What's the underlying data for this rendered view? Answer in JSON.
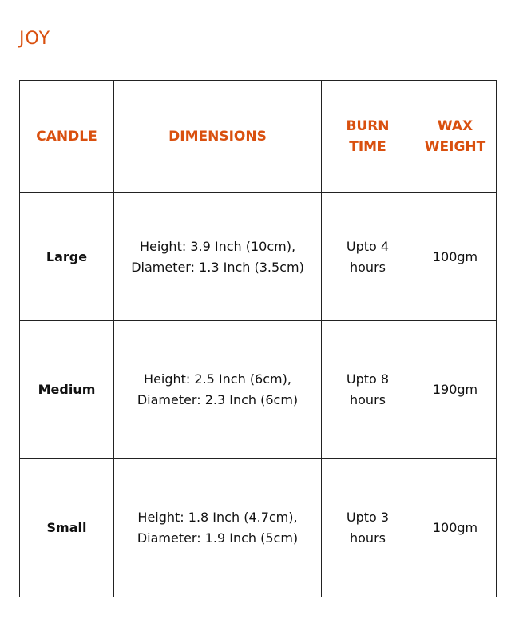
{
  "title": "JOY",
  "colors": {
    "accent": "#d9500f"
  },
  "headers": [
    "CANDLE",
    "DIMENSIONS",
    "BURN TIME",
    "WAX WEIGHT"
  ],
  "rows": [
    {
      "candle": "Large",
      "dim1": "Height: 3.9 Inch (10cm),",
      "dim2": "Diameter: 1.3 Inch (3.5cm)",
      "burn": "Upto 4 hours",
      "wax": "100gm"
    },
    {
      "candle": "Medium",
      "dim1": "Height: 2.5 Inch (6cm),",
      "dim2": "Diameter: 2.3 Inch (6cm)",
      "burn": "Upto 8 hours",
      "wax": "190gm"
    },
    {
      "candle": "Small",
      "dim1": "Height: 1.8 Inch (4.7cm),",
      "dim2": "Diameter: 1.9 Inch (5cm)",
      "burn": "Upto 3 hours",
      "wax": "100gm"
    }
  ]
}
